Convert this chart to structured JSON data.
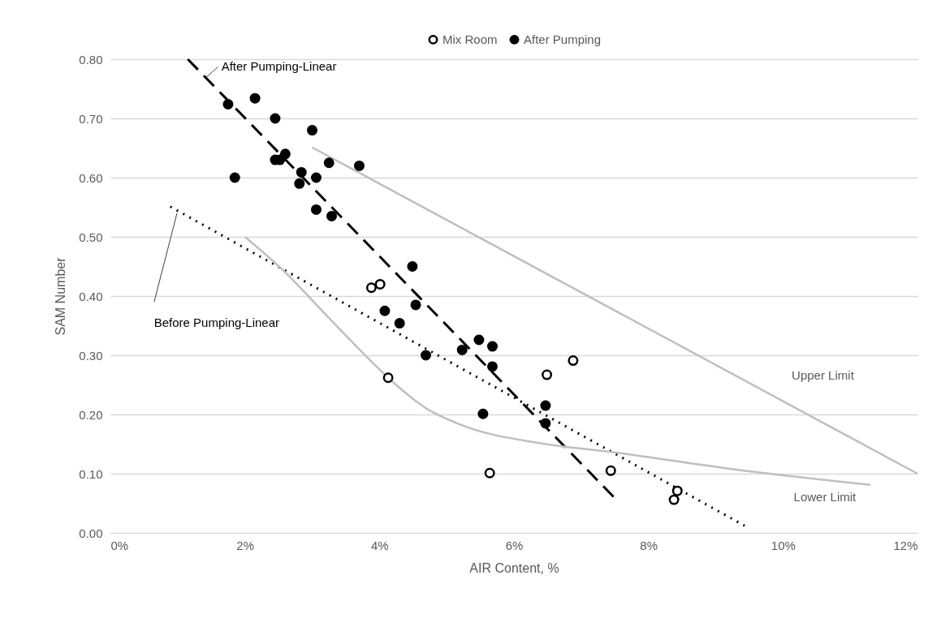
{
  "chart_data": {
    "type": "scatter",
    "xlabel": "AIR Content, %",
    "ylabel": "SAM Number",
    "xlim": [
      0,
      12
    ],
    "xticks": [
      {
        "value": 0,
        "label": "0%"
      },
      {
        "value": 2,
        "label": "2%"
      },
      {
        "value": 4,
        "label": "4%"
      },
      {
        "value": 6,
        "label": "6%"
      },
      {
        "value": 8,
        "label": "8%"
      },
      {
        "value": 10,
        "label": "10%"
      },
      {
        "value": 12,
        "label": "12%"
      }
    ],
    "ylim": [
      0,
      0.8
    ],
    "yticks": [
      {
        "value": 0,
        "label": "0.00"
      },
      {
        "value": 0.1,
        "label": "0.10"
      },
      {
        "value": 0.2,
        "label": "0.20"
      },
      {
        "value": 0.3,
        "label": "0.30"
      },
      {
        "value": 0.4,
        "label": "0.40"
      },
      {
        "value": 0.5,
        "label": "0.50"
      },
      {
        "value": 0.6,
        "label": "0.60"
      },
      {
        "value": 0.7,
        "label": "0.70"
      },
      {
        "value": 0.8,
        "label": "0.80"
      }
    ],
    "grid": "y",
    "legend": "top",
    "marker": "circle",
    "series": [
      {
        "name": "Mix Room",
        "color": "#ffffff",
        "x": [
          3.88,
          4.01,
          4.13,
          5.64,
          6.49,
          6.88,
          7.44,
          8.43,
          8.38
        ],
        "values": [
          0.414,
          0.42,
          0.262,
          0.101,
          0.267,
          0.291,
          0.105,
          0.071,
          0.056
        ]
      },
      {
        "name": "After Pumping",
        "color": "#000000",
        "x": [
          1.75,
          2.15,
          2.45,
          3.0,
          1.85,
          2.45,
          2.52,
          2.6,
          3.25,
          3.7,
          2.84,
          3.06,
          2.81,
          3.06,
          3.29,
          4.49,
          4.54,
          4.08,
          4.3,
          4.69,
          5.23,
          5.48,
          5.68,
          5.68,
          5.54,
          6.47,
          6.47
        ],
        "values": [
          0.724,
          0.734,
          0.7,
          0.68,
          0.6,
          0.63,
          0.63,
          0.64,
          0.625,
          0.62,
          0.609,
          0.6,
          0.59,
          0.546,
          0.535,
          0.45,
          0.385,
          0.375,
          0.354,
          0.3,
          0.309,
          0.326,
          0.315,
          0.281,
          0.201,
          0.215,
          0.185
        ]
      },
      {
        "name": "After Pumping-Linear",
        "type": "line",
        "color": "#000000",
        "line_style": "dashed",
        "marker": "none",
        "x": [
          1.15,
          7.48
        ],
        "values": [
          0.8,
          0.061
        ]
      },
      {
        "name": "Before Pumping-Linear",
        "type": "line",
        "color": "#000000",
        "line_style": "dotted",
        "marker": "none",
        "x": [
          0.89,
          9.43
        ],
        "values": [
          0.551,
          0.012
        ]
      },
      {
        "name": "Upper Limit",
        "type": "line",
        "color": "#bfbfbf",
        "line_style": "solid",
        "marker": "none",
        "x": [
          3.0,
          12.0
        ],
        "values": [
          0.651,
          0.1
        ]
      },
      {
        "name": "Lower Limit",
        "type": "line",
        "color": "#bfbfbf",
        "line_style": "solid",
        "marker": "none",
        "x": [
          2.0,
          2.6,
          3.19,
          3.7,
          4.13,
          4.7,
          5.2,
          6.41,
          7.42,
          9.23,
          11.3
        ],
        "values": [
          0.5,
          0.44,
          0.37,
          0.31,
          0.262,
          0.21,
          0.183,
          0.151,
          0.137,
          0.108,
          0.081
        ]
      }
    ]
  }
}
